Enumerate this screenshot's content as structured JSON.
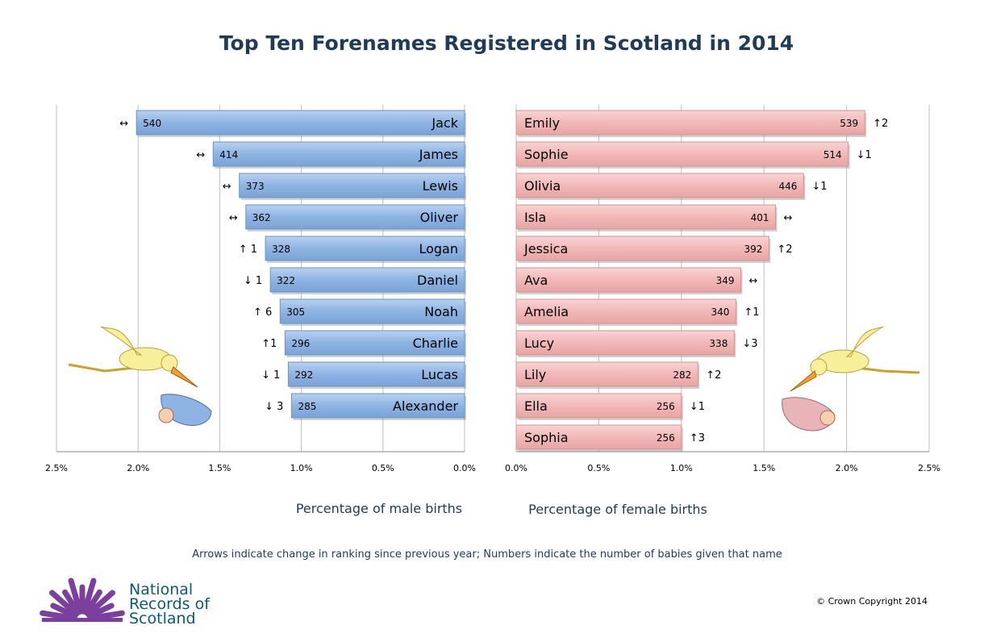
{
  "chart_data": [
    {
      "type": "bar",
      "orientation": "horizontal-reversed",
      "title": "Top Ten Forenames Registered in Scotland in 2014",
      "xlabel": "Percentage of male births",
      "xlim": [
        2.5,
        0
      ],
      "ticks": [
        "2.5%",
        "2.0%",
        "1.5%",
        "1.0%",
        "0.5%",
        "0.0%"
      ],
      "tick_values": [
        2.5,
        2.0,
        1.5,
        1.0,
        0.5,
        0.0
      ],
      "grid": true,
      "color": "#8db4e2",
      "bars": [
        {
          "name": "Jack",
          "percent": 2.01,
          "count": "540",
          "change": "↔"
        },
        {
          "name": "James",
          "percent": 1.54,
          "count": "414",
          "change": "↔"
        },
        {
          "name": "Lewis",
          "percent": 1.38,
          "count": "373",
          "change": "↔"
        },
        {
          "name": "Oliver",
          "percent": 1.34,
          "count": "362",
          "change": "↔"
        },
        {
          "name": "Logan",
          "percent": 1.22,
          "count": "328",
          "change": "↑ 1"
        },
        {
          "name": "Daniel",
          "percent": 1.19,
          "count": "322",
          "change": "↓ 1"
        },
        {
          "name": "Noah",
          "percent": 1.13,
          "count": "305",
          "change": "↑ 6"
        },
        {
          "name": "Charlie",
          "percent": 1.1,
          "count": "296",
          "change": "↑1"
        },
        {
          "name": "Lucas",
          "percent": 1.08,
          "count": "292",
          "change": "↓ 1"
        },
        {
          "name": "Alexander",
          "percent": 1.06,
          "count": "285",
          "change": "↓ 3"
        }
      ]
    },
    {
      "type": "bar",
      "orientation": "horizontal",
      "xlabel": "Percentage of female births",
      "xlim": [
        0,
        2.5
      ],
      "ticks": [
        "0.0%",
        "0.5%",
        "1.0%",
        "1.5%",
        "2.0%",
        "2.5%"
      ],
      "tick_values": [
        0,
        0.5,
        1.0,
        1.5,
        2.0,
        2.5
      ],
      "grid": true,
      "color": "#f2b8b8",
      "bars": [
        {
          "name": "Emily",
          "percent": 2.11,
          "count": "539",
          "change": "↑2"
        },
        {
          "name": "Sophie",
          "percent": 2.01,
          "count": "514",
          "change": "↓1"
        },
        {
          "name": "Olivia",
          "percent": 1.74,
          "count": "446",
          "change": "↓1"
        },
        {
          "name": "Isla",
          "percent": 1.57,
          "count": "401",
          "change": "↔"
        },
        {
          "name": "Jessica",
          "percent": 1.53,
          "count": "392",
          "change": "↑2"
        },
        {
          "name": "Ava",
          "percent": 1.36,
          "count": "349",
          "change": "↔"
        },
        {
          "name": "Amelia",
          "percent": 1.33,
          "count": "340",
          "change": "↑1"
        },
        {
          "name": "Lucy",
          "percent": 1.32,
          "count": "338",
          "change": "↓3"
        },
        {
          "name": "Lily",
          "percent": 1.1,
          "count": "282",
          "change": "↑2"
        },
        {
          "name": "Ella",
          "percent": 1.0,
          "count": "256",
          "change": "↓1"
        },
        {
          "name": "Sophia",
          "percent": 1.0,
          "count": "256",
          "change": "↑3"
        }
      ]
    }
  ],
  "title": "Top Ten Forenames Registered in Scotland in 2014",
  "footnote": "Arrows indicate change in ranking since previous year; Numbers indicate the number of babies given that name",
  "logo": {
    "line1": "National",
    "line2": "Records of",
    "line3": "Scotland"
  },
  "copyright": "© Crown Copyright 2014",
  "colors": {
    "logo_purple": "#7b3f9e",
    "logo_text": "#0e5a74",
    "title": "#1f3b57"
  }
}
